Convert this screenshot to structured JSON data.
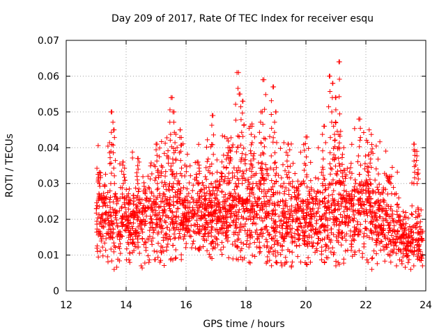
{
  "chart_data": {
    "type": "scatter",
    "title": "Day 209 of 2017, Rate Of TEC Index for receiver esqu",
    "xlabel": "GPS time / hours",
    "ylabel": "ROTI / TECUs",
    "xlim": [
      12,
      24
    ],
    "ylim": [
      0,
      0.07
    ],
    "x_ticks": [
      12,
      14,
      16,
      18,
      20,
      22,
      24
    ],
    "y_ticks": [
      0,
      0.01,
      0.02,
      0.03,
      0.04,
      0.05,
      0.06,
      0.07
    ],
    "x_tick_labels": [
      "12",
      "14",
      "16",
      "18",
      "20",
      "22",
      "24"
    ],
    "y_tick_labels": [
      "0",
      "0.01",
      "0.02",
      "0.03",
      "0.04",
      "0.05",
      "0.06",
      "0.07"
    ],
    "grid": true,
    "marker": "+",
    "color": "#ff0000",
    "data_range": [
      13.0,
      23.9
    ],
    "hourly_profile": {
      "x": [
        13.0,
        13.3,
        13.5,
        14.0,
        14.5,
        15.0,
        15.5,
        16.0,
        16.5,
        17.0,
        17.5,
        18.0,
        18.5,
        19.0,
        19.5,
        20.0,
        20.5,
        21.0,
        21.5,
        22.0,
        22.5,
        23.0,
        23.5,
        23.9
      ],
      "typical_low": [
        0.01,
        0.01,
        0.008,
        0.01,
        0.009,
        0.01,
        0.01,
        0.012,
        0.012,
        0.012,
        0.012,
        0.01,
        0.01,
        0.009,
        0.009,
        0.01,
        0.01,
        0.01,
        0.011,
        0.011,
        0.01,
        0.009,
        0.007,
        0.008
      ],
      "typical_high": [
        0.03,
        0.03,
        0.03,
        0.028,
        0.03,
        0.032,
        0.035,
        0.03,
        0.03,
        0.032,
        0.032,
        0.035,
        0.035,
        0.032,
        0.03,
        0.03,
        0.03,
        0.032,
        0.034,
        0.035,
        0.03,
        0.022,
        0.02,
        0.022
      ]
    },
    "peak_points": [
      {
        "x": 13.1,
        "y": 0.033
      },
      {
        "x": 13.5,
        "y": 0.05
      },
      {
        "x": 13.6,
        "y": 0.045
      },
      {
        "x": 13.9,
        "y": 0.036
      },
      {
        "x": 14.4,
        "y": 0.037
      },
      {
        "x": 15.0,
        "y": 0.041
      },
      {
        "x": 15.5,
        "y": 0.054
      },
      {
        "x": 15.6,
        "y": 0.05
      },
      {
        "x": 15.8,
        "y": 0.045
      },
      {
        "x": 16.4,
        "y": 0.036
      },
      {
        "x": 16.9,
        "y": 0.049
      },
      {
        "x": 17.4,
        "y": 0.04
      },
      {
        "x": 17.7,
        "y": 0.061
      },
      {
        "x": 17.8,
        "y": 0.055
      },
      {
        "x": 17.9,
        "y": 0.053
      },
      {
        "x": 18.2,
        "y": 0.046
      },
      {
        "x": 18.5,
        "y": 0.05
      },
      {
        "x": 18.6,
        "y": 0.059
      },
      {
        "x": 18.9,
        "y": 0.057
      },
      {
        "x": 19.0,
        "y": 0.05
      },
      {
        "x": 19.4,
        "y": 0.041
      },
      {
        "x": 20.0,
        "y": 0.043
      },
      {
        "x": 20.6,
        "y": 0.046
      },
      {
        "x": 20.8,
        "y": 0.06
      },
      {
        "x": 20.9,
        "y": 0.058
      },
      {
        "x": 21.0,
        "y": 0.054
      },
      {
        "x": 21.1,
        "y": 0.064
      },
      {
        "x": 21.0,
        "y": 0.047
      },
      {
        "x": 21.8,
        "y": 0.048
      },
      {
        "x": 22.1,
        "y": 0.038
      },
      {
        "x": 22.8,
        "y": 0.032
      },
      {
        "x": 23.6,
        "y": 0.041
      },
      {
        "x": 23.7,
        "y": 0.039
      }
    ],
    "low_points": [
      {
        "x": 13.6,
        "y": 0.006
      },
      {
        "x": 14.5,
        "y": 0.007
      },
      {
        "x": 15.5,
        "y": 0.009
      },
      {
        "x": 18.1,
        "y": 0.008
      },
      {
        "x": 19.0,
        "y": 0.008
      },
      {
        "x": 19.2,
        "y": 0.007
      },
      {
        "x": 21.0,
        "y": 0.007
      },
      {
        "x": 22.2,
        "y": 0.006
      },
      {
        "x": 23.5,
        "y": 0.006
      },
      {
        "x": 23.6,
        "y": 0.007
      }
    ]
  }
}
